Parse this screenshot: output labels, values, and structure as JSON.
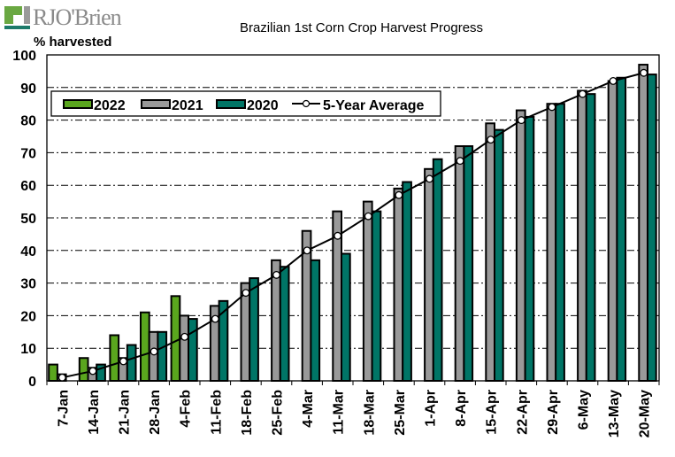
{
  "logo": {
    "text": "RJO'Brien"
  },
  "chart_data": {
    "type": "bar",
    "title": "Brazilian 1st Corn Crop Harvest Progress",
    "xlabel": "",
    "ylabel": "% harvested",
    "ylim": [
      0,
      100
    ],
    "yticks": [
      0,
      10,
      20,
      30,
      40,
      50,
      60,
      70,
      80,
      90,
      100
    ],
    "grid": true,
    "legend_position": "top-left",
    "categories": [
      "7-Jan",
      "14-Jan",
      "21-Jan",
      "28-Jan",
      "4-Feb",
      "11-Feb",
      "18-Feb",
      "25-Feb",
      "4-Mar",
      "11-Mar",
      "18-Mar",
      "25-Mar",
      "1-Apr",
      "8-Apr",
      "15-Apr",
      "22-Apr",
      "29-Apr",
      "6-May",
      "13-May",
      "20-May"
    ],
    "series": [
      {
        "name": "2022",
        "type": "bar",
        "color": "#5aa61e",
        "values": [
          5,
          7,
          14,
          21,
          26,
          null,
          null,
          null,
          null,
          null,
          null,
          null,
          null,
          null,
          null,
          null,
          null,
          null,
          null,
          null
        ]
      },
      {
        "name": "2021",
        "type": "bar",
        "color": "#999999",
        "values": [
          2,
          4,
          7,
          15,
          20,
          23,
          30,
          37,
          46,
          52,
          55,
          59,
          65,
          72,
          79,
          83,
          85,
          89,
          92,
          97
        ]
      },
      {
        "name": "2020",
        "type": "bar",
        "color": "#007566",
        "values": [
          0,
          5,
          11,
          15,
          19,
          24.5,
          31.5,
          35,
          37,
          39,
          52,
          61,
          68,
          72,
          77,
          81,
          85,
          88,
          93,
          94
        ]
      },
      {
        "name": "5-Year Average",
        "type": "line",
        "color": "#000000",
        "values": [
          1,
          3,
          6,
          9,
          13.5,
          19,
          27,
          32.5,
          40,
          44.5,
          50.5,
          57,
          62,
          67.5,
          74,
          80,
          84,
          88,
          92,
          94.5
        ]
      }
    ]
  }
}
